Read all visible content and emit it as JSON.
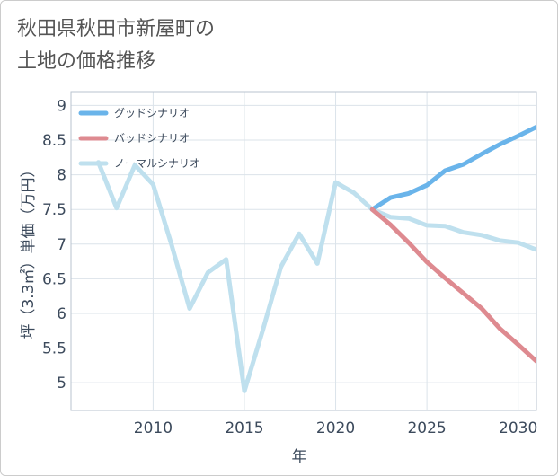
{
  "title": "秋田県秋田市新屋町の\n土地の価格推移",
  "chart_data": {
    "type": "line",
    "xlabel": "年",
    "ylabel": "坪（3.3㎡）単価（万円）",
    "xlim": [
      2005.5,
      2031
    ],
    "ylim": [
      4.6,
      9.2
    ],
    "xticks": [
      2010,
      2015,
      2020,
      2025,
      2030
    ],
    "yticks": [
      5,
      5.5,
      6,
      6.5,
      7,
      7.5,
      8,
      8.5,
      9
    ],
    "xtick_labels": [
      "2010",
      "2015",
      "2020",
      "2025",
      "2030"
    ],
    "ytick_labels": [
      "5",
      "5.5",
      "6",
      "6.5",
      "7",
      "7.5",
      "8",
      "8.5",
      "9"
    ],
    "grid": true,
    "legend_position": "top-left",
    "series": [
      {
        "name": "グッドシナリオ",
        "color": "#6ab4ea",
        "x": [
          2022,
          2023,
          2024,
          2025,
          2026,
          2027,
          2028,
          2029,
          2030,
          2031
        ],
        "values": [
          7.5,
          7.67,
          7.73,
          7.85,
          8.06,
          8.15,
          8.3,
          8.44,
          8.56,
          8.69
        ]
      },
      {
        "name": "バッドシナリオ",
        "color": "#de8a90",
        "x": [
          2022,
          2023,
          2024,
          2025,
          2026,
          2027,
          2028,
          2029,
          2030,
          2031
        ],
        "values": [
          7.5,
          7.28,
          7.02,
          6.74,
          6.51,
          6.29,
          6.07,
          5.78,
          5.55,
          5.31
        ]
      },
      {
        "name": "ノーマルシナリオ",
        "color": "#bfe0ee",
        "x": [
          2007,
          2008,
          2009,
          2010,
          2011,
          2012,
          2013,
          2014,
          2015,
          2016,
          2017,
          2018,
          2019,
          2020,
          2021,
          2022,
          2023,
          2024,
          2025,
          2026,
          2027,
          2028,
          2029,
          2030,
          2031
        ],
        "values": [
          8.18,
          7.52,
          8.14,
          7.86,
          7.0,
          6.07,
          6.59,
          6.78,
          4.88,
          5.75,
          6.67,
          7.15,
          6.72,
          7.89,
          7.74,
          7.5,
          7.39,
          7.37,
          7.27,
          7.26,
          7.17,
          7.13,
          7.05,
          7.02,
          6.92
        ]
      }
    ]
  }
}
